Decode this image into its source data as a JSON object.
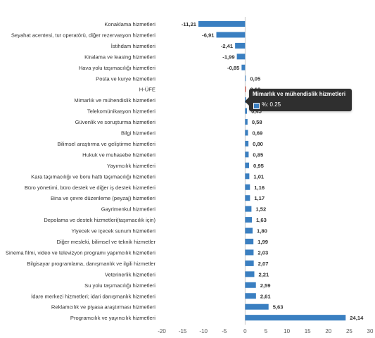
{
  "chart_data": {
    "type": "bar",
    "orientation": "horizontal",
    "categories": [
      "Konaklama hizmetleri",
      "Seyahat acentesi, tur operatörü, diğer rezervasyon hizmetleri",
      "İstihdam hizmetleri",
      "Kiralama ve leasing hizmetleri",
      "Hava yolu taşımacılığı hizmetleri",
      "Posta ve kurye hizmetleri",
      "H-ÜFE",
      "Mimarlık ve mühendislik hizmetleri",
      "Telekomünikasyon hizmetleri",
      "Güvenlik ve soruşturma hizmetleri",
      "Bilgi hizmetleri",
      "Bilimsel araştırma ve geliştirme hizmetleri",
      "Hukuk ve muhasebe hizmetleri",
      "Yayımcılık hizmetleri",
      "Kara taşımacılığı ve boru hattı taşımacılığı hizmetleri",
      "Büro yönetimi, büro destek ve diğer iş destek hizmetleri",
      "Bina ve çevre düzenleme (peyzaj) hizmetleri",
      "Gayrimenkul hizmetleri",
      "Depolama ve destek hizmetleri(taşımacılık için)",
      "Yiyecek ve içecek sunum hizmetleri",
      "Diğer mesleki, bilimsel ve teknik hizmetler",
      "Sinema filmi, video ve televizyon programı yapımcılık hizmetleri",
      "Bilgisayar programlama, danışmanlık ve ilgili hizmetler",
      "Veterinerlik hizmetleri",
      "Su yolu taşımacılığı hizmetleri",
      "İdare merkezi hizmetleri; idari danışmanlık hizmetleri",
      "Reklamcılık ve piyasa araştırması hizmetleri",
      "Programcılık ve yayıncılık hizmetleri"
    ],
    "values": [
      -11.21,
      -6.91,
      -2.41,
      -1.99,
      -0.85,
      0.05,
      0.18,
      0.25,
      0.45,
      0.58,
      0.69,
      0.8,
      0.85,
      0.95,
      1.01,
      1.16,
      1.17,
      1.52,
      1.63,
      1.8,
      1.99,
      2.03,
      2.07,
      2.21,
      2.59,
      2.61,
      5.63,
      24.14
    ],
    "labels": [
      "-11,21",
      "-6,91",
      "-2,41",
      "-1,99",
      "-0,85",
      "0,05",
      "0,18",
      "0,25",
      "0,45",
      "0,58",
      "0,69",
      "0,80",
      "0,85",
      "0,95",
      "1,01",
      "1,16",
      "1,17",
      "1,52",
      "1,63",
      "1,80",
      "1,99",
      "2,03",
      "2,07",
      "2,21",
      "2,59",
      "2,61",
      "5,63",
      "24,14"
    ],
    "highlight_index": 6,
    "xlim": [
      -20,
      30
    ],
    "xticks": [
      -20,
      -15,
      -10,
      -5,
      0,
      5,
      10,
      15,
      20,
      25,
      30
    ],
    "title": "",
    "xlabel": "",
    "ylabel": "",
    "grid": false,
    "colors": {
      "bar": "#3a7fc1",
      "highlight": "#c0392b",
      "zero_line": "#c8c8c8",
      "text": "#333333",
      "tick_text": "#555555"
    }
  },
  "tooltip": {
    "title": "Mimarlık ve mühendislik hizmetleri",
    "value_text": "%: 0.25"
  }
}
